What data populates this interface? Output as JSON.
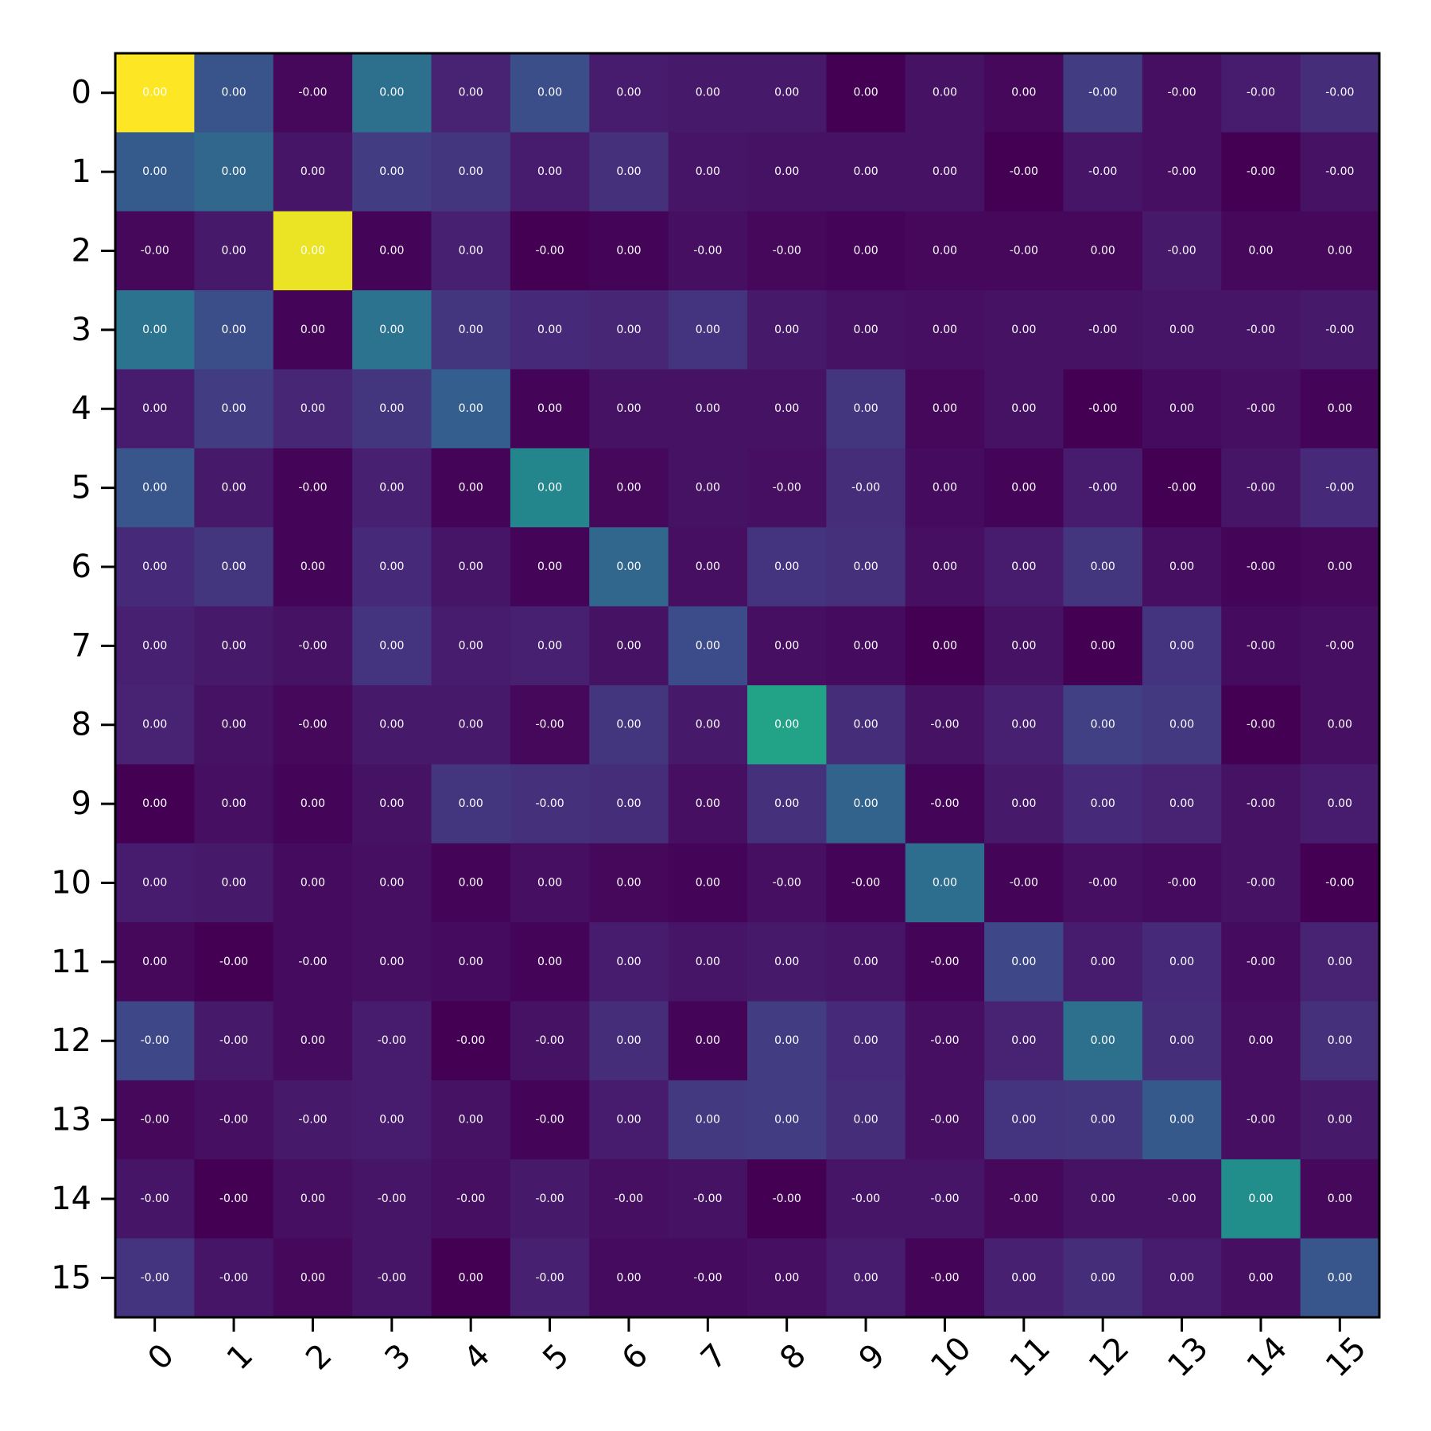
{
  "chart_data": {
    "type": "heatmap",
    "title": "",
    "xlabel": "",
    "ylabel": "",
    "x_ticks": [
      "0",
      "1",
      "2",
      "3",
      "4",
      "5",
      "6",
      "7",
      "8",
      "9",
      "10",
      "11",
      "12",
      "13",
      "14",
      "15"
    ],
    "y_ticks": [
      "0",
      "1",
      "2",
      "3",
      "4",
      "5",
      "6",
      "7",
      "8",
      "9",
      "10",
      "11",
      "12",
      "13",
      "14",
      "15"
    ],
    "colormap": "viridis",
    "cell_text": [
      [
        "0.00",
        "0.00",
        "-0.00",
        "0.00",
        "0.00",
        "0.00",
        "0.00",
        "0.00",
        "0.00",
        "0.00",
        "0.00",
        "0.00",
        "-0.00",
        "-0.00",
        "-0.00",
        "-0.00"
      ],
      [
        "0.00",
        "0.00",
        "0.00",
        "0.00",
        "0.00",
        "0.00",
        "0.00",
        "0.00",
        "0.00",
        "0.00",
        "0.00",
        "-0.00",
        "-0.00",
        "-0.00",
        "-0.00",
        "-0.00"
      ],
      [
        "-0.00",
        "0.00",
        "0.00",
        "0.00",
        "0.00",
        "-0.00",
        "0.00",
        "-0.00",
        "-0.00",
        "0.00",
        "0.00",
        "-0.00",
        "0.00",
        "-0.00",
        "0.00",
        "0.00"
      ],
      [
        "0.00",
        "0.00",
        "0.00",
        "0.00",
        "0.00",
        "0.00",
        "0.00",
        "0.00",
        "0.00",
        "0.00",
        "0.00",
        "0.00",
        "-0.00",
        "0.00",
        "-0.00",
        "-0.00"
      ],
      [
        "0.00",
        "0.00",
        "0.00",
        "0.00",
        "0.00",
        "0.00",
        "0.00",
        "0.00",
        "0.00",
        "0.00",
        "0.00",
        "0.00",
        "-0.00",
        "0.00",
        "-0.00",
        "0.00"
      ],
      [
        "0.00",
        "0.00",
        "-0.00",
        "0.00",
        "0.00",
        "0.00",
        "0.00",
        "0.00",
        "-0.00",
        "-0.00",
        "0.00",
        "0.00",
        "-0.00",
        "-0.00",
        "-0.00",
        "-0.00"
      ],
      [
        "0.00",
        "0.00",
        "0.00",
        "0.00",
        "0.00",
        "0.00",
        "0.00",
        "0.00",
        "0.00",
        "0.00",
        "0.00",
        "0.00",
        "0.00",
        "0.00",
        "-0.00",
        "0.00"
      ],
      [
        "0.00",
        "0.00",
        "-0.00",
        "0.00",
        "0.00",
        "0.00",
        "0.00",
        "0.00",
        "0.00",
        "0.00",
        "0.00",
        "0.00",
        "0.00",
        "0.00",
        "-0.00",
        "-0.00"
      ],
      [
        "0.00",
        "0.00",
        "-0.00",
        "0.00",
        "0.00",
        "-0.00",
        "0.00",
        "0.00",
        "0.00",
        "0.00",
        "-0.00",
        "0.00",
        "0.00",
        "0.00",
        "-0.00",
        "0.00"
      ],
      [
        "0.00",
        "0.00",
        "0.00",
        "0.00",
        "0.00",
        "-0.00",
        "0.00",
        "0.00",
        "0.00",
        "0.00",
        "-0.00",
        "0.00",
        "0.00",
        "0.00",
        "-0.00",
        "0.00"
      ],
      [
        "0.00",
        "0.00",
        "0.00",
        "0.00",
        "0.00",
        "0.00",
        "0.00",
        "0.00",
        "-0.00",
        "-0.00",
        "0.00",
        "-0.00",
        "-0.00",
        "-0.00",
        "-0.00",
        "-0.00"
      ],
      [
        "0.00",
        "-0.00",
        "-0.00",
        "0.00",
        "0.00",
        "0.00",
        "0.00",
        "0.00",
        "0.00",
        "0.00",
        "-0.00",
        "0.00",
        "0.00",
        "0.00",
        "-0.00",
        "0.00"
      ],
      [
        "-0.00",
        "-0.00",
        "0.00",
        "-0.00",
        "-0.00",
        "-0.00",
        "0.00",
        "0.00",
        "0.00",
        "0.00",
        "-0.00",
        "0.00",
        "0.00",
        "0.00",
        "0.00",
        "0.00"
      ],
      [
        "-0.00",
        "-0.00",
        "-0.00",
        "0.00",
        "0.00",
        "-0.00",
        "0.00",
        "0.00",
        "0.00",
        "0.00",
        "-0.00",
        "0.00",
        "0.00",
        "0.00",
        "-0.00",
        "0.00"
      ],
      [
        "-0.00",
        "-0.00",
        "0.00",
        "-0.00",
        "-0.00",
        "-0.00",
        "-0.00",
        "-0.00",
        "-0.00",
        "-0.00",
        "-0.00",
        "-0.00",
        "0.00",
        "-0.00",
        "0.00",
        "0.00"
      ],
      [
        "-0.00",
        "-0.00",
        "0.00",
        "-0.00",
        "0.00",
        "-0.00",
        "0.00",
        "-0.00",
        "0.00",
        "0.00",
        "-0.00",
        "0.00",
        "0.00",
        "0.00",
        "0.00",
        "0.00"
      ]
    ],
    "intensity": [
      [
        1.0,
        0.26,
        0.02,
        0.37,
        0.1,
        0.24,
        0.08,
        0.07,
        0.07,
        0.0,
        0.05,
        0.02,
        0.18,
        0.04,
        0.08,
        0.13
      ],
      [
        0.29,
        0.33,
        0.06,
        0.18,
        0.16,
        0.08,
        0.14,
        0.06,
        0.05,
        0.05,
        0.05,
        0.0,
        0.06,
        0.04,
        0.0,
        0.05
      ],
      [
        0.02,
        0.07,
        0.97,
        0.01,
        0.09,
        0.0,
        0.01,
        0.04,
        0.02,
        0.01,
        0.02,
        0.02,
        0.02,
        0.07,
        0.02,
        0.02
      ],
      [
        0.38,
        0.24,
        0.01,
        0.38,
        0.16,
        0.12,
        0.11,
        0.15,
        0.07,
        0.05,
        0.04,
        0.05,
        0.05,
        0.06,
        0.06,
        0.07
      ],
      [
        0.08,
        0.18,
        0.11,
        0.16,
        0.3,
        0.01,
        0.05,
        0.05,
        0.05,
        0.16,
        0.02,
        0.05,
        0.0,
        0.03,
        0.04,
        0.01
      ],
      [
        0.27,
        0.07,
        0.01,
        0.09,
        0.01,
        0.46,
        0.02,
        0.05,
        0.04,
        0.13,
        0.03,
        0.01,
        0.08,
        0.0,
        0.06,
        0.12
      ],
      [
        0.12,
        0.16,
        0.01,
        0.12,
        0.06,
        0.01,
        0.33,
        0.04,
        0.15,
        0.14,
        0.04,
        0.08,
        0.16,
        0.04,
        0.01,
        0.02
      ],
      [
        0.09,
        0.07,
        0.05,
        0.15,
        0.08,
        0.09,
        0.05,
        0.23,
        0.04,
        0.03,
        0.0,
        0.05,
        0.0,
        0.15,
        0.03,
        0.04
      ],
      [
        0.1,
        0.05,
        0.02,
        0.07,
        0.07,
        0.02,
        0.16,
        0.07,
        0.58,
        0.13,
        0.05,
        0.09,
        0.19,
        0.17,
        0.0,
        0.04
      ],
      [
        0.0,
        0.04,
        0.01,
        0.05,
        0.16,
        0.14,
        0.13,
        0.04,
        0.14,
        0.32,
        0.01,
        0.07,
        0.12,
        0.1,
        0.05,
        0.08
      ],
      [
        0.08,
        0.07,
        0.03,
        0.04,
        0.01,
        0.04,
        0.02,
        0.01,
        0.04,
        0.01,
        0.36,
        0.01,
        0.04,
        0.03,
        0.05,
        0.0
      ],
      [
        0.02,
        0.0,
        0.03,
        0.04,
        0.03,
        0.01,
        0.08,
        0.06,
        0.07,
        0.06,
        0.01,
        0.22,
        0.08,
        0.12,
        0.03,
        0.1
      ],
      [
        0.22,
        0.07,
        0.03,
        0.08,
        0.0,
        0.05,
        0.13,
        0.01,
        0.18,
        0.12,
        0.04,
        0.1,
        0.37,
        0.13,
        0.04,
        0.14
      ],
      [
        0.02,
        0.04,
        0.07,
        0.08,
        0.05,
        0.01,
        0.08,
        0.17,
        0.18,
        0.13,
        0.04,
        0.15,
        0.16,
        0.28,
        0.04,
        0.07
      ],
      [
        0.06,
        0.0,
        0.04,
        0.06,
        0.04,
        0.07,
        0.04,
        0.05,
        0.0,
        0.06,
        0.06,
        0.02,
        0.05,
        0.05,
        0.49,
        0.02
      ],
      [
        0.15,
        0.06,
        0.02,
        0.06,
        0.0,
        0.09,
        0.03,
        0.03,
        0.04,
        0.08,
        0.01,
        0.09,
        0.13,
        0.08,
        0.04,
        0.27
      ]
    ]
  }
}
